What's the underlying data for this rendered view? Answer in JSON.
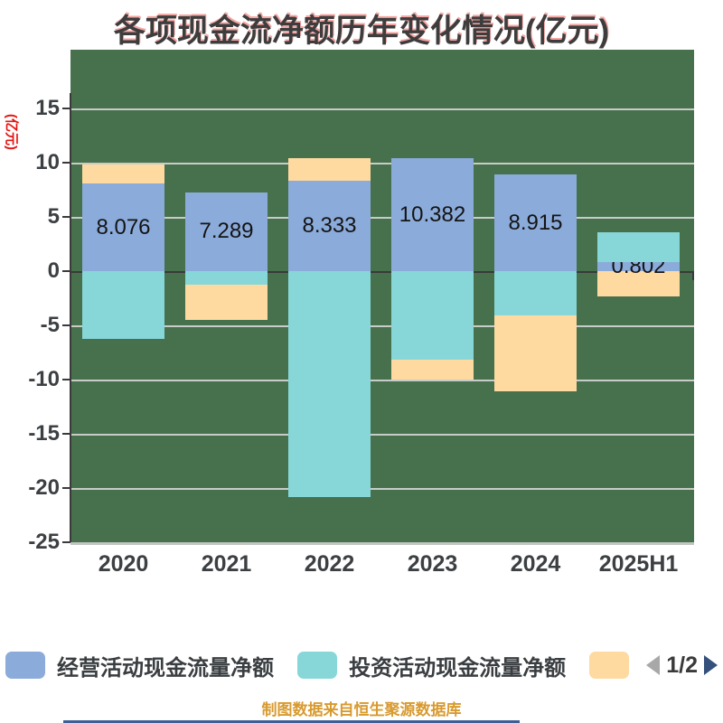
{
  "title": "各项现金流净额历年变化情况(亿元)",
  "y_axis": {
    "name": "(亿元)",
    "ticks": [
      15,
      10,
      5,
      0,
      -5,
      -10,
      -15,
      -20,
      -25
    ],
    "min": -25,
    "max": 15
  },
  "chart_data": {
    "type": "bar",
    "stacked": true,
    "title": "各项现金流净额历年变化情况(亿元)",
    "ylabel": "(亿元)",
    "ylim": [
      -25,
      15
    ],
    "grid": true,
    "legend_position": "bottom",
    "categories": [
      "2020",
      "2021",
      "2022",
      "2023",
      "2024",
      "2025H1"
    ],
    "series": [
      {
        "name": "经营活动现金流量净额",
        "color": "#8babda",
        "values": [
          8.076,
          7.289,
          8.333,
          10.382,
          8.915,
          0.802
        ],
        "labels": [
          "8.076",
          "7.289",
          "8.333",
          "10.382",
          "8.915",
          "0.802"
        ]
      },
      {
        "name": "投资活动现金流量净额",
        "color": "#87d7d9",
        "values": [
          -6.25,
          -1.25,
          -20.83,
          -8.17,
          -4.08,
          2.75
        ],
        "labels": []
      },
      {
        "name": "",
        "color": "#fed9a0",
        "values": [
          1.76,
          -3.25,
          2.08,
          -1.83,
          -7.0,
          -2.33
        ],
        "labels": []
      }
    ]
  },
  "legend": {
    "page_label": "1/2"
  },
  "caption": "制图数据来自恒生聚源数据库",
  "colors": {
    "plot_bg": "#47714d",
    "grid": "#c8ccc8",
    "axis": "#3a3a3a",
    "zero_line": "#3a3a3a",
    "tick_label": "#3c4043",
    "value_label": "#141414",
    "y_name_red": "#e51511",
    "caption_orange": "#d89a2f",
    "page_arrow_left": "#a8a8a8",
    "page_arrow_right": "#33517c",
    "bottom_strip": "#3f5e96"
  }
}
